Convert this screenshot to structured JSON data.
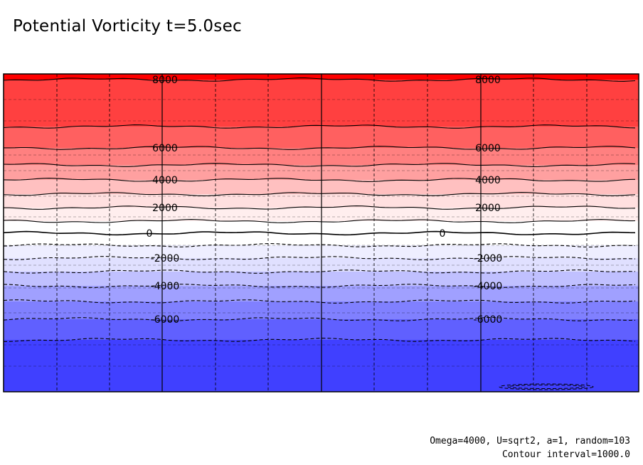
{
  "title": "Potential Vorticity t=5.0sec",
  "footer": {
    "params": "Omega=4000, U=sqrt2, a=1, random=103",
    "contour_interval": "Contour interval=1000.0"
  },
  "chart_data": {
    "type": "heatmap",
    "title": "Potential Vorticity t=5.0sec",
    "xlabel": "",
    "ylabel": "",
    "value_range": [
      -8000,
      9000
    ],
    "contour_interval": 1000,
    "levels": [
      -8000,
      -7000,
      -6000,
      -5000,
      -4000,
      -3000,
      -2000,
      -1000,
      0,
      1000,
      2000,
      3000,
      4000,
      5000,
      6000,
      7000,
      8000
    ],
    "bands": [
      {
        "lo": 8000,
        "hi": 9000,
        "color": "#ff0000"
      },
      {
        "lo": 7000,
        "hi": 8000,
        "color": "#ff4040"
      },
      {
        "lo": 6000,
        "hi": 7000,
        "color": "#ff6060"
      },
      {
        "lo": 5000,
        "hi": 6000,
        "color": "#ff8080"
      },
      {
        "lo": 4000,
        "hi": 5000,
        "color": "#ffa0a0"
      },
      {
        "lo": 3000,
        "hi": 4000,
        "color": "#ffc0c0"
      },
      {
        "lo": 2000,
        "hi": 3000,
        "color": "#ffe0e0"
      },
      {
        "lo": 1000,
        "hi": 2000,
        "color": "#ffeeee"
      },
      {
        "lo": 0,
        "hi": 1000,
        "color": "#ffffff"
      },
      {
        "lo": -1000,
        "hi": 0,
        "color": "#ffffff"
      },
      {
        "lo": -2000,
        "hi": -1000,
        "color": "#eeeeff"
      },
      {
        "lo": -3000,
        "hi": -2000,
        "color": "#e0e0ff"
      },
      {
        "lo": -4000,
        "hi": -3000,
        "color": "#c0c0ff"
      },
      {
        "lo": -5000,
        "hi": -4000,
        "color": "#a0a0ff"
      },
      {
        "lo": -6000,
        "hi": -5000,
        "color": "#8080ff"
      },
      {
        "lo": -7000,
        "hi": -6000,
        "color": "#6060ff"
      },
      {
        "lo": -8000,
        "hi": -7000,
        "color": "#4040ff"
      }
    ],
    "contour_labels": [
      "8000",
      "6000",
      "4000",
      "2000",
      "0",
      "-2000",
      "-4000",
      "-6000"
    ],
    "grid": true,
    "legend": "none"
  }
}
